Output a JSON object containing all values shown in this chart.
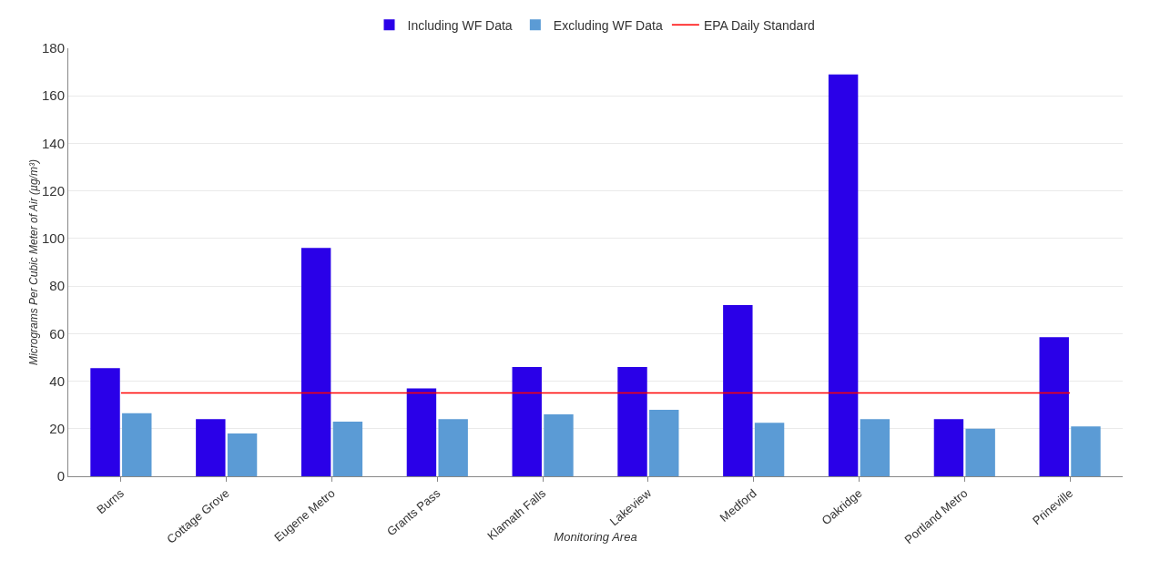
{
  "chart_data": {
    "type": "bar",
    "xlabel": "Monitoring Area",
    "ylabel": "Micrograms Per Cubic Meter of Air (µg/m³)",
    "categories": [
      "Burns",
      "Cottage Grove",
      "Eugene Metro",
      "Grants Pass",
      "Klamath Falls",
      "Lakeview",
      "Medford",
      "Oakridge",
      "Portland Metro",
      "Prineville"
    ],
    "series": [
      {
        "name": "Including WF Data",
        "color": "#2a00e8",
        "values": [
          45.5,
          24,
          96,
          37,
          46,
          46,
          72,
          169,
          24,
          58.5
        ]
      },
      {
        "name": "Excluding WF Data",
        "color": "#5b9bd5",
        "values": [
          26.5,
          18,
          23,
          24,
          26,
          28,
          22.5,
          24,
          20,
          21
        ]
      },
      {
        "name": "EPA Daily Standard",
        "type": "line",
        "color": "#ff0000",
        "values": [
          35,
          35,
          35,
          35,
          35,
          35,
          35,
          35,
          35,
          35
        ]
      }
    ],
    "ylim": [
      0,
      180
    ],
    "yticks": [
      0,
      20,
      40,
      60,
      80,
      100,
      120,
      140,
      160,
      180
    ],
    "grid": "y",
    "legend": "top"
  }
}
